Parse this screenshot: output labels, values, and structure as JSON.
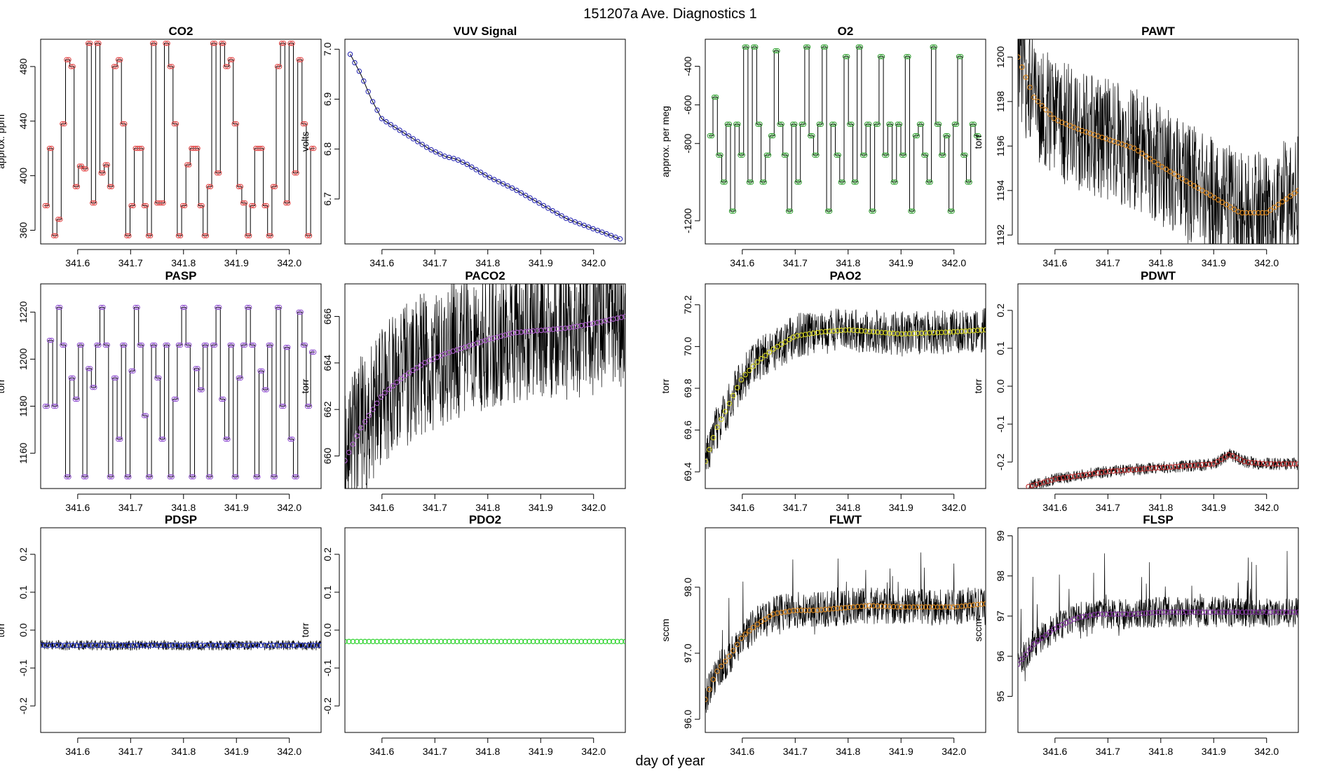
{
  "figure": {
    "title": "151207a   Ave. Diagnostics 1",
    "xlabel": "day of year"
  },
  "chart_data": [
    {
      "type": "line",
      "title": "CO2",
      "ylabel": "approx. ppm",
      "xlim": [
        341.53,
        342.06
      ],
      "ylim": [
        350,
        500
      ],
      "xticks": [
        "341.6",
        "341.7",
        "341.8",
        "341.9",
        "342.0"
      ],
      "yticks": [
        "360",
        "400",
        "440",
        "480"
      ],
      "color": "#e04040",
      "pattern": "square",
      "levels": [
        378,
        420,
        356,
        368,
        438,
        485,
        480,
        392,
        407,
        405,
        497,
        380,
        497,
        402,
        408,
        392,
        480,
        485,
        438,
        356,
        378,
        420,
        420,
        378,
        356,
        497,
        380,
        380,
        497,
        480,
        438,
        356,
        378,
        408,
        420,
        420,
        378,
        356,
        392,
        497,
        402,
        497,
        480,
        485,
        438,
        392,
        380,
        356,
        378,
        420,
        420,
        378,
        356,
        392,
        480,
        497,
        380,
        497,
        402,
        485,
        438,
        356,
        420
      ]
    },
    {
      "type": "line",
      "title": "VUV Signal",
      "ylabel": "volts",
      "xlim": [
        341.53,
        342.06
      ],
      "ylim": [
        6.61,
        7.02
      ],
      "xticks": [
        "341.6",
        "341.7",
        "341.8",
        "341.9",
        "342.0"
      ],
      "yticks": [
        "6.7",
        "6.8",
        "6.9",
        "7.0"
      ],
      "color": "#2020b0",
      "pattern": "decay",
      "x": [
        341.54,
        341.56,
        341.58,
        341.6,
        341.63,
        341.66,
        341.69,
        341.72,
        341.74,
        341.76,
        341.8,
        341.85,
        341.9,
        341.95,
        342.0,
        342.05
      ],
      "y": [
        6.99,
        6.95,
        6.9,
        6.86,
        6.84,
        6.82,
        6.8,
        6.785,
        6.78,
        6.77,
        6.745,
        6.72,
        6.69,
        6.66,
        6.64,
        6.62
      ]
    },
    {
      "type": "line",
      "title": "O2",
      "ylabel": "approx. per meg",
      "xlim": [
        341.53,
        342.06
      ],
      "ylim": [
        -1320,
        -260
      ],
      "xticks": [
        "341.6",
        "341.7",
        "341.8",
        "341.9",
        "342.0"
      ],
      "yticks": [
        "-1200",
        "-800",
        "-600",
        "-400"
      ],
      "color": "#30a030",
      "pattern": "square",
      "levels": [
        -760,
        -560,
        -860,
        -1000,
        -700,
        -1150,
        -700,
        -860,
        -300,
        -1000,
        -300,
        -700,
        -1000,
        -860,
        -760,
        -320,
        -700,
        -860,
        -1150,
        -700,
        -1000,
        -700,
        -300,
        -760,
        -860,
        -700,
        -300,
        -1150,
        -700,
        -860,
        -1000,
        -350,
        -700,
        -1000,
        -300,
        -860,
        -700,
        -1150,
        -700,
        -350,
        -860,
        -700,
        -1000,
        -700,
        -860,
        -350,
        -1150,
        -760,
        -700,
        -860,
        -1000,
        -300,
        -700,
        -860,
        -760,
        -1150,
        -700,
        -350,
        -860,
        -1000,
        -700,
        -760
      ]
    },
    {
      "type": "line",
      "title": "PAWT",
      "ylabel": "torr",
      "xlim": [
        341.53,
        342.06
      ],
      "ylim": [
        1191.6,
        1200.8
      ],
      "xticks": [
        "341.6",
        "341.7",
        "341.8",
        "341.9",
        "342.0"
      ],
      "yticks": [
        "1192",
        "1194",
        "1196",
        "1198",
        "1200"
      ],
      "color": "#e08a1e",
      "pattern": "noisy",
      "noise": 0.6,
      "x": [
        341.53,
        341.56,
        341.6,
        341.65,
        341.7,
        341.75,
        341.8,
        341.85,
        341.9,
        341.95,
        342.0,
        342.03,
        342.06
      ],
      "y": [
        1200.0,
        1198.2,
        1197.2,
        1196.7,
        1196.3,
        1195.9,
        1195.1,
        1194.4,
        1193.7,
        1193.0,
        1193.0,
        1193.5,
        1194.0
      ]
    },
    {
      "type": "line",
      "title": "PASP",
      "ylabel": "torr",
      "xlim": [
        341.53,
        342.06
      ],
      "ylim": [
        1145,
        1232
      ],
      "xticks": [
        "341.6",
        "341.7",
        "341.8",
        "341.9",
        "342.0"
      ],
      "yticks": [
        "1160",
        "1180",
        "1200",
        "1220"
      ],
      "color": "#9050d0",
      "pattern": "square",
      "levels": [
        1180,
        1208,
        1180,
        1222,
        1206,
        1150,
        1192,
        1183,
        1206,
        1150,
        1196,
        1188,
        1206,
        1222,
        1206,
        1150,
        1192,
        1166,
        1206,
        1150,
        1195,
        1222,
        1206,
        1176,
        1150,
        1206,
        1192,
        1166,
        1206,
        1150,
        1183,
        1206,
        1222,
        1206,
        1150,
        1196,
        1187,
        1206,
        1150,
        1206,
        1222,
        1183,
        1166,
        1206,
        1150,
        1192,
        1206,
        1222,
        1206,
        1150,
        1195,
        1187,
        1206,
        1150,
        1222,
        1180,
        1205,
        1166,
        1150,
        1220,
        1206,
        1180,
        1203
      ]
    },
    {
      "type": "line",
      "title": "PACO2",
      "ylabel": "torr",
      "xlim": [
        341.53,
        342.06
      ],
      "ylim": [
        658.6,
        667.4
      ],
      "xticks": [
        "341.6",
        "341.7",
        "341.8",
        "341.9",
        "342.0"
      ],
      "yticks": [
        "660",
        "662",
        "664",
        "666"
      ],
      "color": "#b060d0",
      "pattern": "noisy",
      "noise": 0.7,
      "x": [
        341.53,
        341.56,
        341.6,
        341.64,
        341.68,
        341.72,
        341.76,
        341.8,
        341.85,
        341.9,
        341.95,
        342.0,
        342.06
      ],
      "y": [
        659.8,
        661.2,
        662.6,
        663.4,
        664.0,
        664.4,
        664.7,
        665.0,
        665.3,
        665.4,
        665.5,
        665.7,
        666.0
      ]
    },
    {
      "type": "line",
      "title": "PAO2",
      "ylabel": "torr",
      "xlim": [
        341.53,
        342.06
      ],
      "ylim": [
        69.32,
        70.3
      ],
      "xticks": [
        "341.6",
        "341.7",
        "341.8",
        "341.9",
        "342.0"
      ],
      "yticks": [
        "69.4",
        "69.6",
        "69.8",
        "70.0",
        "70.2"
      ],
      "color": "#d8d820",
      "pattern": "noisy",
      "noise": 0.22,
      "x": [
        341.53,
        341.55,
        341.58,
        341.6,
        341.63,
        341.66,
        341.7,
        341.75,
        341.8,
        341.9,
        342.0,
        342.06
      ],
      "y": [
        69.45,
        69.6,
        69.75,
        69.85,
        69.93,
        69.99,
        70.05,
        70.07,
        70.08,
        70.06,
        70.07,
        70.08
      ]
    },
    {
      "type": "line",
      "title": "PDWT",
      "ylabel": "torr",
      "xlim": [
        341.53,
        342.06
      ],
      "ylim": [
        -0.27,
        0.27
      ],
      "xticks": [
        "341.6",
        "341.7",
        "341.8",
        "341.9",
        "342.0"
      ],
      "yticks": [
        "-0.2",
        "-0.1",
        "0.0",
        "0.1",
        "0.2"
      ],
      "color": "#c03030",
      "pattern": "noisy",
      "noise": 0.06,
      "x": [
        341.55,
        341.6,
        341.65,
        341.7,
        341.75,
        341.8,
        341.85,
        341.9,
        341.93,
        341.96,
        342.0,
        342.06
      ],
      "y": [
        -0.265,
        -0.245,
        -0.235,
        -0.225,
        -0.22,
        -0.215,
        -0.21,
        -0.205,
        -0.18,
        -0.2,
        -0.205,
        -0.205
      ]
    },
    {
      "type": "line",
      "title": "PDSP",
      "ylabel": "torr",
      "xlim": [
        341.53,
        342.06
      ],
      "ylim": [
        -0.27,
        0.27
      ],
      "xticks": [
        "341.6",
        "341.7",
        "341.8",
        "341.9",
        "342.0"
      ],
      "yticks": [
        "-0.2",
        "-0.1",
        "0.0",
        "0.1",
        "0.2"
      ],
      "color": "#2030c0",
      "pattern": "noisy",
      "noise": 0.05,
      "x": [
        341.53,
        341.7,
        341.9,
        342.06
      ],
      "y": [
        -0.04,
        -0.04,
        -0.04,
        -0.04
      ]
    },
    {
      "type": "line",
      "title": "PDO2",
      "ylabel": "torr",
      "xlim": [
        341.53,
        342.06
      ],
      "ylim": [
        -0.27,
        0.27
      ],
      "xticks": [
        "341.6",
        "341.7",
        "341.8",
        "341.9",
        "342.0"
      ],
      "yticks": [
        "-0.2",
        "-0.1",
        "0.0",
        "0.1",
        "0.2"
      ],
      "color": "#20d020",
      "pattern": "noisy",
      "noise": 0.0,
      "x": [
        341.53,
        342.06
      ],
      "y": [
        -0.03,
        -0.03
      ]
    },
    {
      "type": "line",
      "title": "FLWT",
      "ylabel": "sccm",
      "xlim": [
        341.53,
        342.06
      ],
      "ylim": [
        95.8,
        98.9
      ],
      "xticks": [
        "341.6",
        "341.7",
        "341.8",
        "341.9",
        "342.0"
      ],
      "yticks": [
        "96.0",
        "97.0",
        "98.0"
      ],
      "color": "#e08a1e",
      "pattern": "noisy",
      "noise": 0.18,
      "spikes": 0.7,
      "x": [
        341.53,
        341.55,
        341.58,
        341.6,
        341.63,
        341.66,
        341.7,
        341.74,
        341.78,
        341.84,
        341.9,
        342.0,
        342.06
      ],
      "y": [
        96.3,
        96.7,
        97.0,
        97.25,
        97.45,
        97.6,
        97.65,
        97.65,
        97.68,
        97.72,
        97.7,
        97.7,
        97.75
      ]
    },
    {
      "type": "line",
      "title": "FLSP",
      "ylabel": "sccm",
      "xlim": [
        341.53,
        342.06
      ],
      "ylim": [
        94.1,
        99.2
      ],
      "xticks": [
        "341.6",
        "341.7",
        "341.8",
        "341.9",
        "342.0"
      ],
      "yticks": [
        "95",
        "96",
        "97",
        "98",
        "99"
      ],
      "color": "#8030a0",
      "pattern": "noisy",
      "noise": 0.15,
      "spikes": 0.8,
      "x": [
        341.53,
        341.56,
        341.6,
        341.64,
        341.68,
        341.75,
        341.8,
        341.9,
        342.0,
        342.06
      ],
      "y": [
        95.8,
        96.3,
        96.7,
        96.95,
        97.05,
        97.05,
        97.1,
        97.1,
        97.1,
        97.1
      ]
    }
  ]
}
